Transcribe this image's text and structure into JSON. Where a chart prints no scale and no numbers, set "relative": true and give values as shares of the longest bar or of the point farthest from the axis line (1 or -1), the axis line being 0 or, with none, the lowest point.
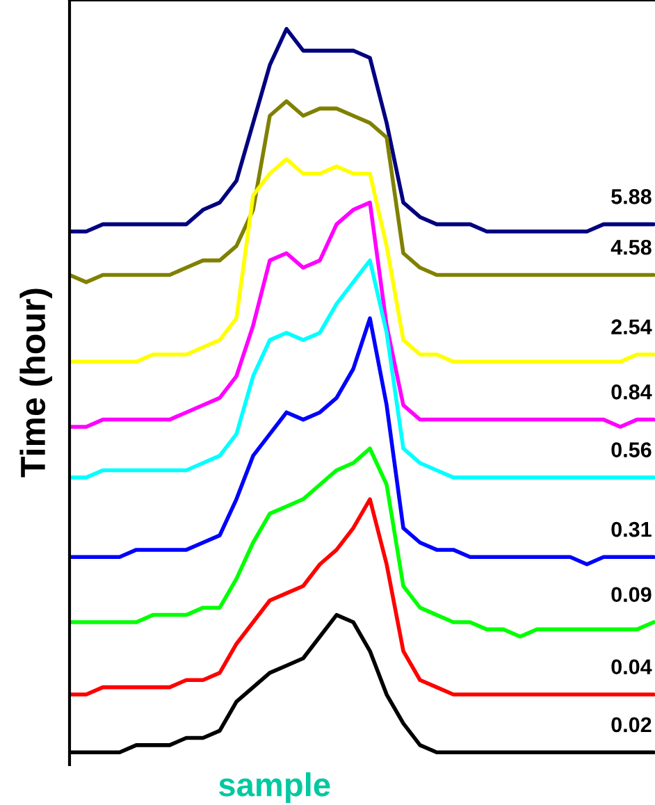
{
  "chart_data": {
    "type": "line",
    "relative": true,
    "ylabel": "Time (hour)",
    "xlabel": "sample",
    "tick_labels": false,
    "legend": false,
    "marker": "none",
    "line_style": "solid",
    "categories": [
      null,
      null,
      null,
      null,
      null,
      null,
      null,
      null,
      null,
      null,
      null,
      null,
      null,
      null,
      null,
      null,
      null,
      null,
      null,
      null,
      null,
      null,
      null,
      null,
      null,
      null,
      null,
      null,
      null,
      null,
      null,
      null,
      null,
      null,
      null,
      null
    ],
    "series": [
      {
        "name": "5.88",
        "color": "#000080",
        "values": [
          0.72,
          0.72,
          0.73,
          0.73,
          0.73,
          0.73,
          0.73,
          0.73,
          0.75,
          0.76,
          0.79,
          0.87,
          0.95,
          1.0,
          0.97,
          0.97,
          0.97,
          0.97,
          0.96,
          0.87,
          0.76,
          0.74,
          0.73,
          0.73,
          0.73,
          0.72,
          0.72,
          0.72,
          0.72,
          0.72,
          0.72,
          0.72,
          0.73,
          0.73,
          0.73,
          0.73
        ]
      },
      {
        "name": "4.58",
        "color": "#808000",
        "values": [
          0.66,
          0.65,
          0.66,
          0.66,
          0.66,
          0.66,
          0.66,
          0.67,
          0.68,
          0.68,
          0.7,
          0.75,
          0.88,
          0.9,
          0.88,
          0.89,
          0.89,
          0.88,
          0.87,
          0.85,
          0.69,
          0.67,
          0.66,
          0.66,
          0.66,
          0.66,
          0.66,
          0.66,
          0.66,
          0.66,
          0.66,
          0.66,
          0.66,
          0.66,
          0.66,
          0.66
        ]
      },
      {
        "name": "2.54",
        "color": "#ffff00",
        "values": [
          0.54,
          0.54,
          0.54,
          0.54,
          0.54,
          0.55,
          0.55,
          0.55,
          0.56,
          0.57,
          0.6,
          0.77,
          0.8,
          0.82,
          0.8,
          0.8,
          0.81,
          0.8,
          0.8,
          0.7,
          0.57,
          0.55,
          0.55,
          0.54,
          0.54,
          0.54,
          0.54,
          0.54,
          0.54,
          0.54,
          0.54,
          0.54,
          0.54,
          0.54,
          0.55,
          0.55
        ]
      },
      {
        "name": "0.84",
        "color": "#ff00ff",
        "values": [
          0.45,
          0.45,
          0.46,
          0.46,
          0.46,
          0.46,
          0.46,
          0.47,
          0.48,
          0.49,
          0.52,
          0.59,
          0.68,
          0.69,
          0.67,
          0.68,
          0.73,
          0.75,
          0.76,
          0.59,
          0.48,
          0.46,
          0.46,
          0.46,
          0.46,
          0.46,
          0.46,
          0.46,
          0.46,
          0.46,
          0.46,
          0.46,
          0.46,
          0.45,
          0.46,
          0.46
        ]
      },
      {
        "name": "0.56",
        "color": "#00ffff",
        "values": [
          0.38,
          0.38,
          0.39,
          0.39,
          0.39,
          0.39,
          0.39,
          0.39,
          0.4,
          0.41,
          0.44,
          0.52,
          0.57,
          0.58,
          0.57,
          0.58,
          0.62,
          0.65,
          0.68,
          0.58,
          0.42,
          0.4,
          0.39,
          0.38,
          0.38,
          0.38,
          0.38,
          0.38,
          0.38,
          0.38,
          0.38,
          0.38,
          0.38,
          0.38,
          0.38,
          0.38
        ]
      },
      {
        "name": "0.31",
        "color": "#0000ff",
        "values": [
          0.27,
          0.27,
          0.27,
          0.27,
          0.28,
          0.28,
          0.28,
          0.28,
          0.29,
          0.3,
          0.35,
          0.41,
          0.44,
          0.47,
          0.46,
          0.47,
          0.49,
          0.53,
          0.6,
          0.48,
          0.31,
          0.29,
          0.28,
          0.28,
          0.27,
          0.27,
          0.27,
          0.27,
          0.27,
          0.27,
          0.27,
          0.26,
          0.27,
          0.27,
          0.27,
          0.27
        ]
      },
      {
        "name": "0.09",
        "color": "#00ff00",
        "values": [
          0.18,
          0.18,
          0.18,
          0.18,
          0.18,
          0.19,
          0.19,
          0.19,
          0.2,
          0.2,
          0.24,
          0.29,
          0.33,
          0.34,
          0.35,
          0.37,
          0.39,
          0.4,
          0.42,
          0.37,
          0.23,
          0.2,
          0.19,
          0.18,
          0.18,
          0.17,
          0.17,
          0.16,
          0.17,
          0.17,
          0.17,
          0.17,
          0.17,
          0.17,
          0.17,
          0.18
        ]
      },
      {
        "name": "0.04",
        "color": "#ff0000",
        "values": [
          0.08,
          0.08,
          0.09,
          0.09,
          0.09,
          0.09,
          0.09,
          0.1,
          0.1,
          0.11,
          0.15,
          0.18,
          0.21,
          0.22,
          0.23,
          0.26,
          0.28,
          0.31,
          0.35,
          0.26,
          0.14,
          0.1,
          0.09,
          0.08,
          0.08,
          0.08,
          0.08,
          0.08,
          0.08,
          0.08,
          0.08,
          0.08,
          0.08,
          0.08,
          0.08,
          0.08
        ]
      },
      {
        "name": "0.02",
        "color": "#000000",
        "values": [
          0.0,
          0.0,
          0.0,
          0.0,
          0.01,
          0.01,
          0.01,
          0.02,
          0.02,
          0.03,
          0.07,
          0.09,
          0.11,
          0.12,
          0.13,
          0.16,
          0.19,
          0.18,
          0.14,
          0.08,
          0.04,
          0.01,
          0.0,
          0.0,
          0.0,
          0.0,
          0.0,
          0.0,
          0.0,
          0.0,
          0.0,
          0.0,
          0.0,
          0.0,
          0.0,
          0.0
        ]
      }
    ]
  }
}
